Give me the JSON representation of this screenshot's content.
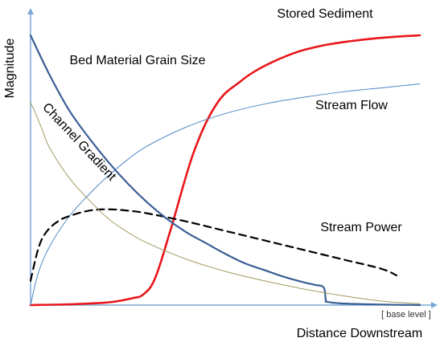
{
  "chart_data": {
    "type": "line",
    "title": "",
    "xlabel": "Distance Downstream",
    "ylabel": "Magnitude",
    "x_annotation": "[ base level ]",
    "xlim": [
      0,
      100
    ],
    "ylim": [
      0,
      100
    ],
    "grid": false,
    "legend": "none (series labeled directly on curves)",
    "axis_color": "#7aa7d6",
    "series": [
      {
        "name": "Stored Sediment",
        "color": "#e8161b",
        "dash": "solid",
        "width": "thick",
        "x": [
          0,
          10,
          20,
          26,
          29,
          32,
          36,
          42,
          48,
          54,
          58,
          62,
          66,
          70,
          76,
          82,
          88,
          94,
          100
        ],
        "y": [
          0,
          0.3,
          1,
          2.5,
          4,
          10,
          28,
          57,
          75,
          83,
          87,
          90,
          92.5,
          94.5,
          96.5,
          97.8,
          98.8,
          99.5,
          100
        ]
      },
      {
        "name": "Stream Flow",
        "color": "#4f87c7",
        "dash": "solid",
        "width": "thin",
        "x": [
          0,
          2,
          5,
          10,
          15,
          20,
          25,
          30,
          40,
          50,
          60,
          70,
          80,
          90,
          100
        ],
        "y": [
          0,
          12,
          22,
          33,
          41,
          48,
          54,
          59,
          66,
          71,
          74.5,
          77,
          79,
          80.5,
          82
        ]
      },
      {
        "name": "Stream Power",
        "color": "#000000",
        "dash": "dashed",
        "width": "medium",
        "x": [
          0,
          2,
          4,
          7,
          10,
          15,
          20,
          25,
          30,
          40,
          50,
          60,
          70,
          80,
          90,
          94
        ],
        "y": [
          9,
          21,
          27,
          31,
          33,
          35,
          35.5,
          35,
          34,
          31,
          27.5,
          24,
          20.5,
          17,
          13.5,
          11
        ]
      },
      {
        "name": "Bed Material Grain Size",
        "color": "#3a5f95",
        "dash": "solid",
        "width": "medium",
        "x": [
          0,
          5,
          10,
          15,
          20,
          25,
          30,
          35,
          40,
          45,
          50,
          55,
          60,
          65,
          70,
          73,
          75.3,
          75.8,
          76.2,
          80,
          90,
          100
        ],
        "y": [
          100,
          85,
          72,
          62,
          53,
          45,
          38,
          32,
          27,
          23,
          19,
          15.5,
          13,
          10.5,
          8.5,
          7.5,
          6.5,
          2,
          1.2,
          0.6,
          0.2,
          0
        ]
      },
      {
        "name": "Channel Gradient",
        "color": "#a39a62",
        "dash": "solid",
        "width": "thin",
        "x": [
          0,
          1,
          3,
          5,
          10,
          15,
          20,
          25,
          30,
          40,
          50,
          60,
          70,
          80,
          90,
          100
        ],
        "y": [
          75,
          72,
          65,
          58,
          47,
          39,
          32,
          27,
          23,
          17,
          12.5,
          9,
          6,
          3.5,
          1.5,
          0.5
        ]
      }
    ],
    "annotations": [
      {
        "text": "Stored Sediment",
        "series": "Stored Sediment"
      },
      {
        "text": "Stream Flow",
        "series": "Stream Flow"
      },
      {
        "text": "Stream Power",
        "series": "Stream Power"
      },
      {
        "text": "Bed Material Grain Size",
        "series": "Bed Material Grain Size"
      },
      {
        "text": "Channel Gradient",
        "series": "Channel Gradient"
      }
    ]
  }
}
